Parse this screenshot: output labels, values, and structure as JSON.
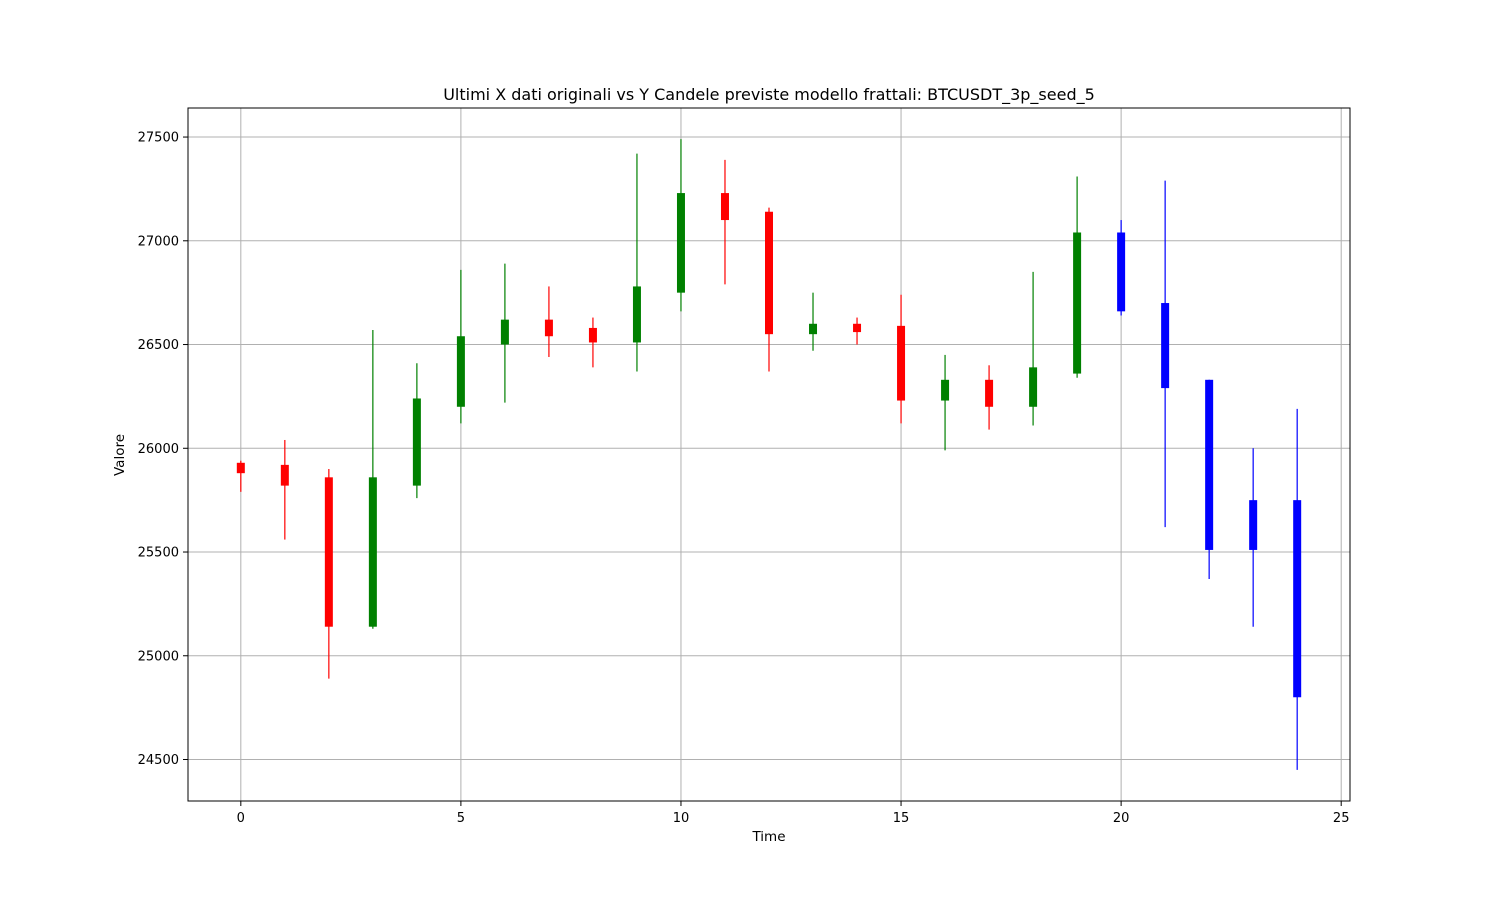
{
  "chart_data": {
    "type": "candlestick",
    "title": "Ultimi X dati originali vs Y Candele previste modello frattali: BTCUSDT_3p_seed_5",
    "xlabel": "Time",
    "ylabel": "Valore",
    "xlim": [
      -1.2,
      25.2
    ],
    "ylim": [
      24300,
      27640
    ],
    "xticks": [
      0,
      5,
      10,
      15,
      20,
      25
    ],
    "yticks": [
      24500,
      25000,
      25500,
      26000,
      26500,
      27000,
      27500
    ],
    "grid": true,
    "colors": {
      "up": "#008000",
      "down": "#ff0000",
      "predicted": "#0000ff"
    },
    "candles": [
      {
        "t": 0,
        "open": 25930,
        "high": 25940,
        "low": 25790,
        "close": 25880,
        "group": "original"
      },
      {
        "t": 1,
        "open": 25920,
        "high": 26040,
        "low": 25560,
        "close": 25820,
        "group": "original"
      },
      {
        "t": 2,
        "open": 25860,
        "high": 25900,
        "low": 24890,
        "close": 25140,
        "group": "original"
      },
      {
        "t": 3,
        "open": 25140,
        "high": 26570,
        "low": 25130,
        "close": 25860,
        "group": "original"
      },
      {
        "t": 4,
        "open": 25820,
        "high": 26410,
        "low": 25760,
        "close": 26240,
        "group": "original"
      },
      {
        "t": 5,
        "open": 26200,
        "high": 26860,
        "low": 26120,
        "close": 26540,
        "group": "original"
      },
      {
        "t": 6,
        "open": 26500,
        "high": 26890,
        "low": 26220,
        "close": 26620,
        "group": "original"
      },
      {
        "t": 7,
        "open": 26620,
        "high": 26780,
        "low": 26440,
        "close": 26540,
        "group": "original"
      },
      {
        "t": 8,
        "open": 26580,
        "high": 26630,
        "low": 26390,
        "close": 26510,
        "group": "original"
      },
      {
        "t": 9,
        "open": 26510,
        "high": 27420,
        "low": 26370,
        "close": 26780,
        "group": "original"
      },
      {
        "t": 10,
        "open": 26750,
        "high": 27490,
        "low": 26660,
        "close": 27230,
        "group": "original"
      },
      {
        "t": 11,
        "open": 27230,
        "high": 27390,
        "low": 26790,
        "close": 27100,
        "group": "original"
      },
      {
        "t": 12,
        "open": 27140,
        "high": 27160,
        "low": 26370,
        "close": 26550,
        "group": "original"
      },
      {
        "t": 13,
        "open": 26550,
        "high": 26750,
        "low": 26470,
        "close": 26600,
        "group": "original"
      },
      {
        "t": 14,
        "open": 26600,
        "high": 26630,
        "low": 26500,
        "close": 26560,
        "group": "original"
      },
      {
        "t": 15,
        "open": 26590,
        "high": 26740,
        "low": 26120,
        "close": 26230,
        "group": "original"
      },
      {
        "t": 16,
        "open": 26230,
        "high": 26450,
        "low": 25990,
        "close": 26330,
        "group": "original"
      },
      {
        "t": 17,
        "open": 26330,
        "high": 26400,
        "low": 26090,
        "close": 26200,
        "group": "original"
      },
      {
        "t": 18,
        "open": 26200,
        "high": 26850,
        "low": 26110,
        "close": 26390,
        "group": "original"
      },
      {
        "t": 19,
        "open": 26360,
        "high": 27310,
        "low": 26340,
        "close": 27040,
        "group": "original"
      },
      {
        "t": 20,
        "open": 27040,
        "high": 27100,
        "low": 26640,
        "close": 26660,
        "group": "predicted"
      },
      {
        "t": 21,
        "open": 26700,
        "high": 27290,
        "low": 25620,
        "close": 26290,
        "group": "predicted"
      },
      {
        "t": 22,
        "open": 26330,
        "high": 26330,
        "low": 25370,
        "close": 25510,
        "group": "predicted"
      },
      {
        "t": 23,
        "open": 25750,
        "high": 26000,
        "low": 25140,
        "close": 25510,
        "group": "predicted"
      },
      {
        "t": 24,
        "open": 25750,
        "high": 26190,
        "low": 24450,
        "close": 24800,
        "group": "predicted"
      }
    ]
  }
}
